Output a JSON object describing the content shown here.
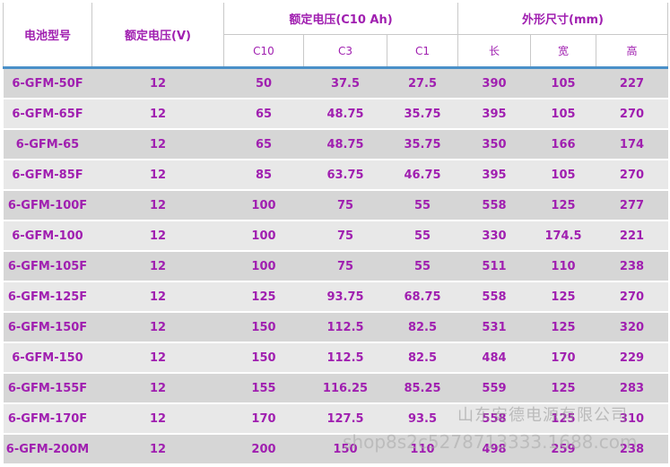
{
  "header": {
    "model": "电池型号",
    "voltage": "额定电压(V)",
    "capacity": "额定电压(C10 Ah)",
    "dimensions": "外形尺寸(mm)",
    "sub": [
      "C10",
      "C3",
      "C1",
      "长",
      "宽",
      "高"
    ]
  },
  "rows": [
    [
      "6-GFM-50F",
      "12",
      "50",
      "37.5",
      "27.5",
      "390",
      "105",
      "227"
    ],
    [
      "6-GFM-65F",
      "12",
      "65",
      "48.75",
      "35.75",
      "395",
      "105",
      "270"
    ],
    [
      "6-GFM-65",
      "12",
      "65",
      "48.75",
      "35.75",
      "350",
      "166",
      "174"
    ],
    [
      "6-GFM-85F",
      "12",
      "85",
      "63.75",
      "46.75",
      "395",
      "105",
      "270"
    ],
    [
      "6-GFM-100F",
      "12",
      "100",
      "75",
      "55",
      "558",
      "125",
      "277"
    ],
    [
      "6-GFM-100",
      "12",
      "100",
      "75",
      "55",
      "330",
      "174.5",
      "221"
    ],
    [
      "6-GFM-105F",
      "12",
      "100",
      "75",
      "55",
      "511",
      "110",
      "238"
    ],
    [
      "6-GFM-125F",
      "12",
      "125",
      "93.75",
      "68.75",
      "558",
      "125",
      "270"
    ],
    [
      "6-GFM-150F",
      "12",
      "150",
      "112.5",
      "82.5",
      "531",
      "125",
      "320"
    ],
    [
      "6-GFM-150",
      "12",
      "150",
      "112.5",
      "82.5",
      "484",
      "170",
      "229"
    ],
    [
      "6-GFM-155F",
      "12",
      "155",
      "116.25",
      "85.25",
      "559",
      "125",
      "283"
    ],
    [
      "6-GFM-170F",
      "12",
      "170",
      "127.5",
      "93.5",
      "558",
      "125",
      "310"
    ],
    [
      "6-GFM-200M",
      "12",
      "200",
      "150",
      "110",
      "498",
      "259",
      "238"
    ]
  ],
  "watermark": {
    "company": "山东安德电源有限公司",
    "url": "shop8s2c5278713333.1688.com"
  }
}
